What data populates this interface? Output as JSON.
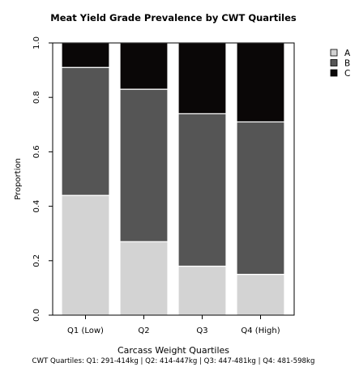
{
  "chart_data": {
    "type": "bar",
    "stacked": true,
    "title": "Meat Yield Grade Prevalence by CWT Quartiles",
    "xlabel": "Carcass Weight Quartiles",
    "ylabel": "Proportion",
    "caption": "CWT Quartiles: Q1: 291-414kg | Q2: 414-447kg | Q3: 447-481kg | Q4: 481-598kg",
    "categories": [
      "Q1 (Low)",
      "Q2",
      "Q3",
      "Q4 (High)"
    ],
    "ylim": [
      0,
      1
    ],
    "yticks": [
      "0.0",
      "0.2",
      "0.4",
      "0.6",
      "0.8",
      "1.0"
    ],
    "series": [
      {
        "name": "A",
        "color": "#d3d3d3",
        "values": [
          0.44,
          0.27,
          0.18,
          0.15
        ]
      },
      {
        "name": "B",
        "color": "#555555",
        "values": [
          0.47,
          0.56,
          0.56,
          0.56
        ]
      },
      {
        "name": "C",
        "color": "#0a0707",
        "values": [
          0.09,
          0.17,
          0.26,
          0.29
        ]
      }
    ],
    "legend_position": "top-right",
    "grid": false
  }
}
